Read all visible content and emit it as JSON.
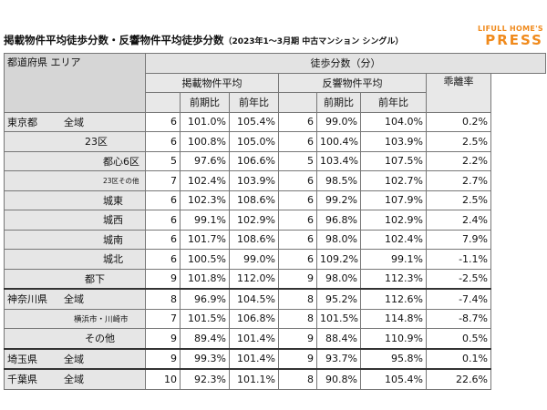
{
  "title": {
    "main": "掲載物件平均徒歩分数・反響物件平均徒歩分数",
    "sub": "（2023年1～3月期 中古マンション シングル）"
  },
  "logo": {
    "top": "LIFULL HOME'S",
    "bottom": "PRESS"
  },
  "headers": {
    "area": "都道府県 エリア",
    "walk": "徒歩分数（分）",
    "listed": "掲載物件平均",
    "inquired": "反響物件平均",
    "qoq": "前期比",
    "yoy": "前年比",
    "gap": "乖離率"
  },
  "rows": [
    {
      "pref": "東京都",
      "area": "全域",
      "l_min": "6",
      "l_qoq": "101.0%",
      "l_yoy": "105.4%",
      "i_min": "6",
      "i_qoq": "99.0%",
      "i_yoy": "104.0%",
      "gap": "0.2%"
    },
    {
      "pref": "",
      "area": "23区",
      "l_min": "6",
      "l_qoq": "100.8%",
      "l_yoy": "105.0%",
      "i_min": "6",
      "i_qoq": "100.4%",
      "i_yoy": "103.9%",
      "gap": "2.5%"
    },
    {
      "pref": "",
      "area": "都心6区",
      "l_min": "5",
      "l_qoq": "97.6%",
      "l_yoy": "106.6%",
      "i_min": "5",
      "i_qoq": "103.4%",
      "i_yoy": "107.5%",
      "gap": "2.2%"
    },
    {
      "pref": "",
      "area": "23区その他",
      "l_min": "7",
      "l_qoq": "102.4%",
      "l_yoy": "103.9%",
      "i_min": "6",
      "i_qoq": "98.5%",
      "i_yoy": "102.7%",
      "gap": "2.7%"
    },
    {
      "pref": "",
      "area": "城東",
      "l_min": "6",
      "l_qoq": "102.3%",
      "l_yoy": "108.6%",
      "i_min": "6",
      "i_qoq": "99.2%",
      "i_yoy": "107.9%",
      "gap": "2.5%"
    },
    {
      "pref": "",
      "area": "城西",
      "l_min": "6",
      "l_qoq": "99.1%",
      "l_yoy": "102.9%",
      "i_min": "6",
      "i_qoq": "96.8%",
      "i_yoy": "102.9%",
      "gap": "2.4%"
    },
    {
      "pref": "",
      "area": "城南",
      "l_min": "6",
      "l_qoq": "101.7%",
      "l_yoy": "108.6%",
      "i_min": "6",
      "i_qoq": "98.0%",
      "i_yoy": "102.4%",
      "gap": "7.9%"
    },
    {
      "pref": "",
      "area": "城北",
      "l_min": "6",
      "l_qoq": "100.5%",
      "l_yoy": "99.0%",
      "i_min": "6",
      "i_qoq": "109.2%",
      "i_yoy": "99.1%",
      "gap": "-1.1%"
    },
    {
      "pref": "",
      "area": "都下",
      "l_min": "9",
      "l_qoq": "101.8%",
      "l_yoy": "112.0%",
      "i_min": "9",
      "i_qoq": "98.0%",
      "i_yoy": "112.3%",
      "gap": "-2.5%"
    },
    {
      "pref": "神奈川県",
      "area": "全域",
      "l_min": "8",
      "l_qoq": "96.9%",
      "l_yoy": "104.5%",
      "i_min": "8",
      "i_qoq": "95.2%",
      "i_yoy": "112.6%",
      "gap": "-7.4%"
    },
    {
      "pref": "",
      "area": "横浜市・川崎市",
      "l_min": "7",
      "l_qoq": "101.5%",
      "l_yoy": "106.8%",
      "i_min": "8",
      "i_qoq": "101.5%",
      "i_yoy": "114.8%",
      "gap": "-8.7%"
    },
    {
      "pref": "",
      "area": "その他",
      "l_min": "9",
      "l_qoq": "89.4%",
      "l_yoy": "101.4%",
      "i_min": "9",
      "i_qoq": "88.4%",
      "i_yoy": "110.9%",
      "gap": "0.5%"
    },
    {
      "pref": "埼玉県",
      "area": "全域",
      "l_min": "9",
      "l_qoq": "99.3%",
      "l_yoy": "101.4%",
      "i_min": "9",
      "i_qoq": "93.7%",
      "i_yoy": "95.8%",
      "gap": "0.1%"
    },
    {
      "pref": "千葉県",
      "area": "全域",
      "l_min": "10",
      "l_qoq": "92.3%",
      "l_yoy": "101.1%",
      "i_min": "8",
      "i_qoq": "90.8%",
      "i_yoy": "105.4%",
      "gap": "22.6%"
    }
  ]
}
